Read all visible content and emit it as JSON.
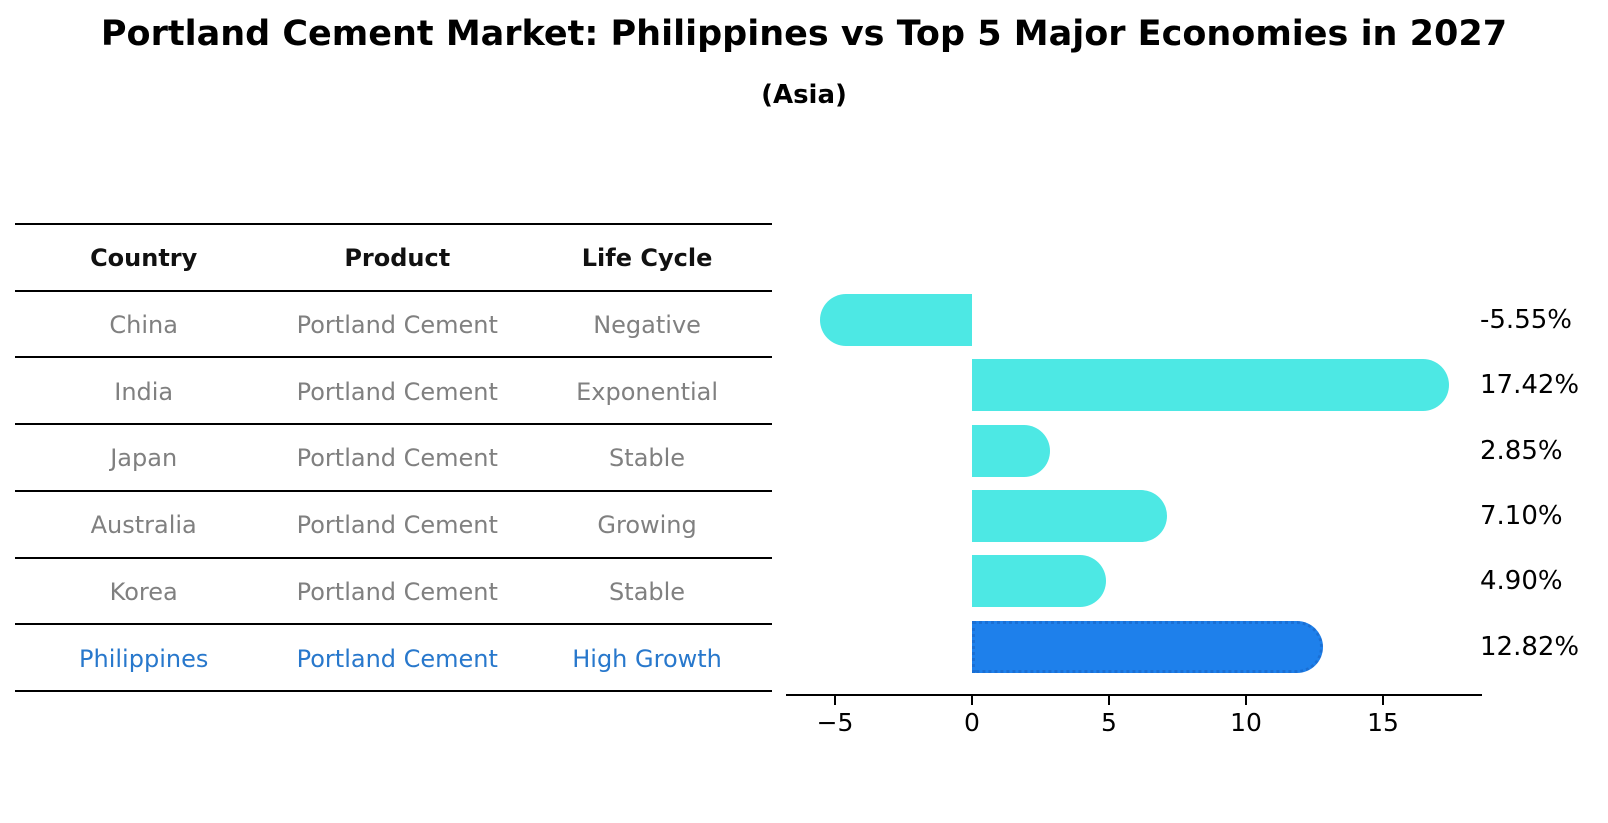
{
  "title": "Portland Cement Market: Philippines vs Top 5 Major Economies in 2027",
  "subtitle": "(Asia)",
  "table": {
    "headers": [
      "Country",
      "Product",
      "Life Cycle"
    ],
    "rows": [
      {
        "country": "China",
        "product": "Portland Cement",
        "life_cycle": "Negative"
      },
      {
        "country": "India",
        "product": "Portland Cement",
        "life_cycle": "Exponential"
      },
      {
        "country": "Japan",
        "product": "Portland Cement",
        "life_cycle": "Stable"
      },
      {
        "country": "Australia",
        "product": "Portland Cement",
        "life_cycle": "Growing"
      },
      {
        "country": "Korea",
        "product": "Portland Cement",
        "life_cycle": "Stable"
      },
      {
        "country": "Philippines",
        "product": "Portland Cement",
        "life_cycle": "High Growth"
      }
    ],
    "highlight_row": 5
  },
  "chart_data": {
    "type": "bar",
    "orientation": "horizontal",
    "categories": [
      "China",
      "India",
      "Japan",
      "Australia",
      "Korea",
      "Philippines"
    ],
    "values": [
      -5.55,
      17.42,
      2.85,
      7.1,
      4.9,
      12.82
    ],
    "value_labels": [
      "-5.55%",
      "17.42%",
      "2.85%",
      "7.10%",
      "4.90%",
      "12.82%"
    ],
    "x_ticks": [
      -5,
      0,
      5,
      10,
      15
    ],
    "x_tick_labels": [
      "−5",
      "0",
      "5",
      "10",
      "15"
    ],
    "xlim": [
      -6.8,
      18.6
    ],
    "grid": false,
    "legend": false,
    "title": "Portland Cement Market: Philippines vs Top 5 Major Economies in 2027",
    "subtitle": "(Asia)",
    "bar_color": "#4DE8E4",
    "highlight_index": 5,
    "highlight_bar_color": "#1E80EB",
    "highlight_border_color": "#1A6FD4"
  },
  "colors": {
    "row_text": "#808080",
    "header_text": "#111111",
    "highlight_text": "#2878CC",
    "axis": "#000000"
  }
}
